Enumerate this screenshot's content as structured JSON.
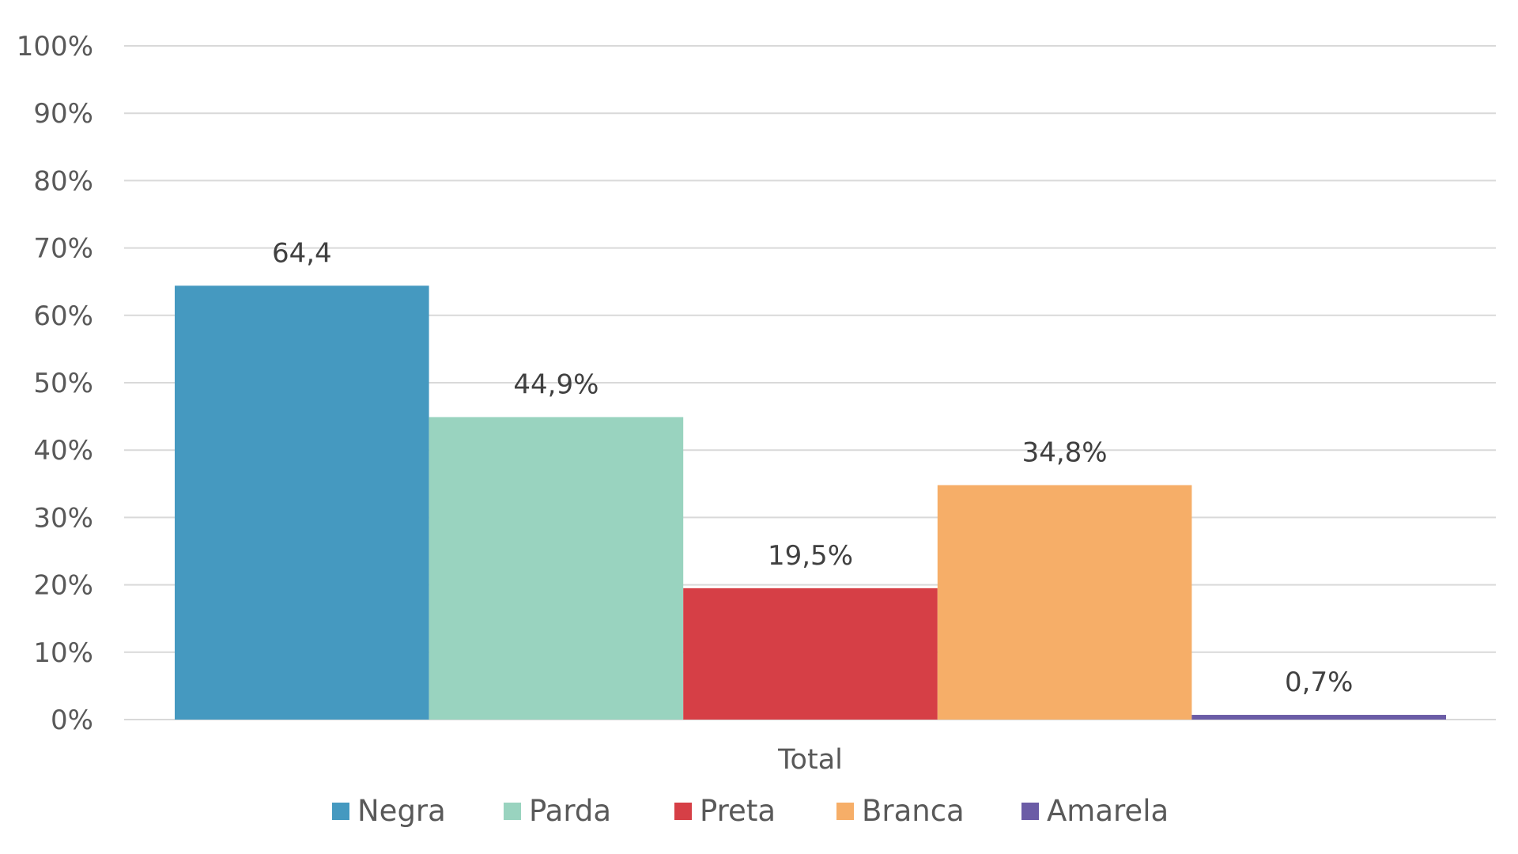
{
  "chart_data": {
    "type": "bar",
    "categories": [
      "Total"
    ],
    "series": [
      {
        "name": "Negra",
        "values": [
          64.4
        ],
        "color": "#4599C0",
        "data_label": "64,4"
      },
      {
        "name": "Parda",
        "values": [
          44.9
        ],
        "color": "#99D3BF",
        "data_label": "44,9%"
      },
      {
        "name": "Preta",
        "values": [
          19.5
        ],
        "color": "#D63F46",
        "data_label": "19,5%"
      },
      {
        "name": "Branca",
        "values": [
          34.8
        ],
        "color": "#F6AE68",
        "data_label": "34,8%"
      },
      {
        "name": "Amarela",
        "values": [
          0.7
        ],
        "color": "#6B5CA6",
        "data_label": "0,7%"
      }
    ],
    "y_ticks": [
      "0%",
      "10%",
      "20%",
      "30%",
      "40%",
      "50%",
      "60%",
      "70%",
      "80%",
      "90%",
      "100%"
    ],
    "ylim": [
      0,
      100
    ],
    "grid": true,
    "legend_position": "bottom",
    "gridline_color": "#D9D9D9"
  }
}
